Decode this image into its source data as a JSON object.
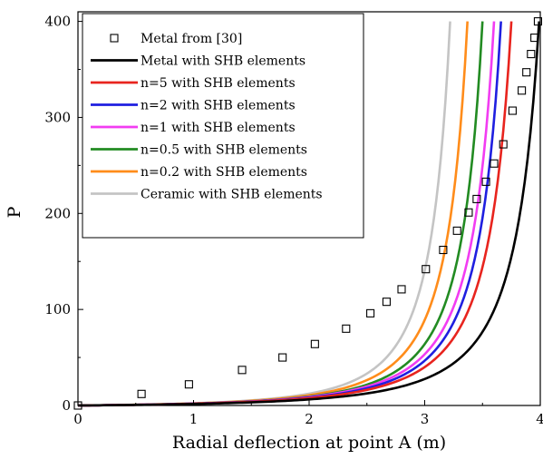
{
  "chart_data": {
    "type": "line",
    "title": "",
    "xlabel": "Radial deflection at point A (m)",
    "ylabel": "P",
    "xlim": [
      0,
      4
    ],
    "ylim": [
      0,
      410
    ],
    "x_ticks": [
      "0",
      "1",
      "2",
      "3",
      "4"
    ],
    "x_tick_values": [
      0,
      1,
      2,
      3,
      4
    ],
    "y_ticks": [
      "0",
      "100",
      "200",
      "300",
      "400"
    ],
    "y_tick_values": [
      0,
      100,
      200,
      300,
      400
    ],
    "grid": false,
    "legend_position": "top-left",
    "series": [
      {
        "name": "Metal from [30]",
        "kind": "marker",
        "marker": "square",
        "color": "#000000",
        "x": [
          0.0,
          0.55,
          0.96,
          1.42,
          1.77,
          2.05,
          2.32,
          2.53,
          2.67,
          2.8,
          3.01,
          3.16,
          3.28,
          3.38,
          3.45,
          3.53,
          3.6,
          3.68,
          3.76,
          3.84,
          3.88,
          3.92,
          3.95,
          3.98
        ],
        "y": [
          0,
          12,
          22,
          37,
          50,
          64,
          80,
          96,
          108,
          121,
          142,
          162,
          182,
          201,
          215,
          233,
          252,
          272,
          307,
          328,
          347,
          366,
          383,
          400
        ]
      },
      {
        "name": "Metal with SHB elements",
        "kind": "line",
        "color": "#000000",
        "x_end": 3.99,
        "xlimit": 4.42
      },
      {
        "name": "n=5  with SHB elements",
        "kind": "line",
        "color": "#e8241e",
        "x_end": 3.75,
        "xlimit": 4.16
      },
      {
        "name": "n=2  with SHB elements",
        "kind": "line",
        "color": "#1f1fe0",
        "x_end": 3.66,
        "xlimit": 4.06
      },
      {
        "name": "n=1  with SHB elements",
        "kind": "line",
        "color": "#f23cf2",
        "x_end": 3.6,
        "xlimit": 4.0
      },
      {
        "name": "n=0.5  with SHB elements",
        "kind": "line",
        "color": "#228b22",
        "x_end": 3.5,
        "xlimit": 3.88
      },
      {
        "name": "n=0.2  with SHB elements",
        "kind": "line",
        "color": "#ff8c1a",
        "x_end": 3.37,
        "xlimit": 3.74
      },
      {
        "name": "Ceramic  with SHB elements",
        "kind": "line",
        "color": "#c4c4c4",
        "x_end": 3.22,
        "xlimit": 3.57
      }
    ]
  }
}
